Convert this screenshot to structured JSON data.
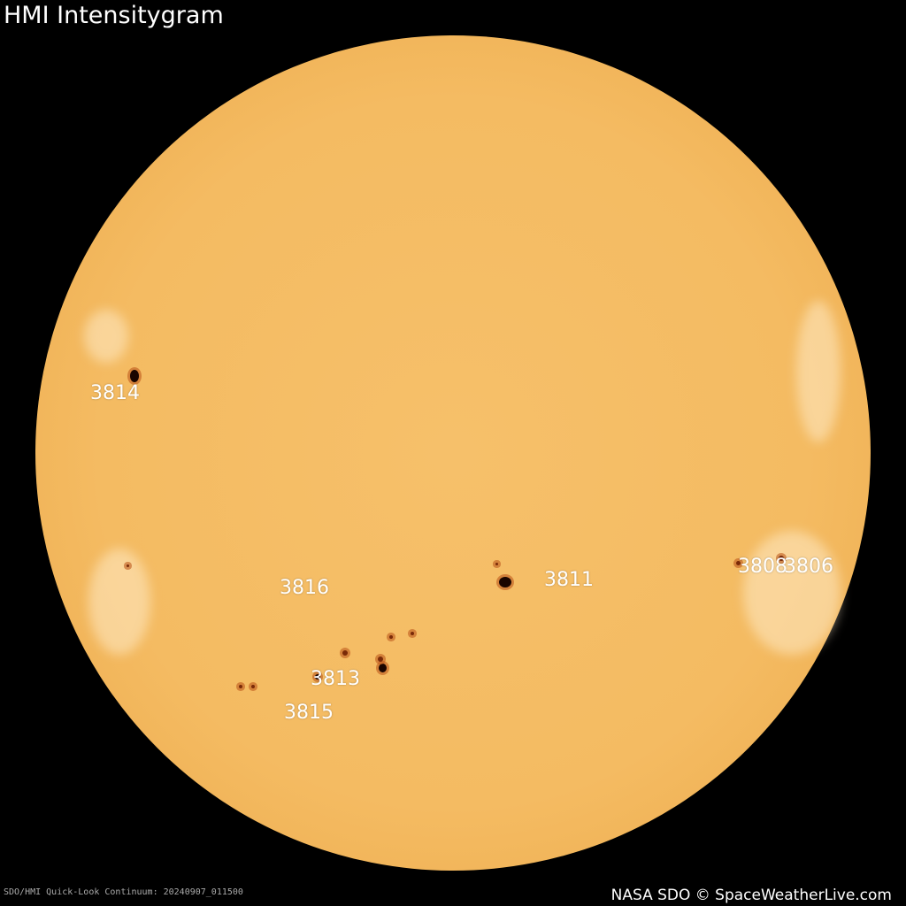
{
  "title": "HMI Intensitygram",
  "regions": [
    {
      "id": "3814"
    },
    {
      "id": "3816"
    },
    {
      "id": "3811"
    },
    {
      "id": "3808"
    },
    {
      "id": "3806"
    },
    {
      "id": "3813"
    },
    {
      "id": "3815"
    }
  ],
  "caption": "SDO/HMI Quick-Look Continuum: 20240907_011500",
  "credit": "NASA SDO © SpaceWeatherLive.com",
  "colors": {
    "background": "#000000",
    "sun": "#f4bb62",
    "label": "#ffffff"
  }
}
